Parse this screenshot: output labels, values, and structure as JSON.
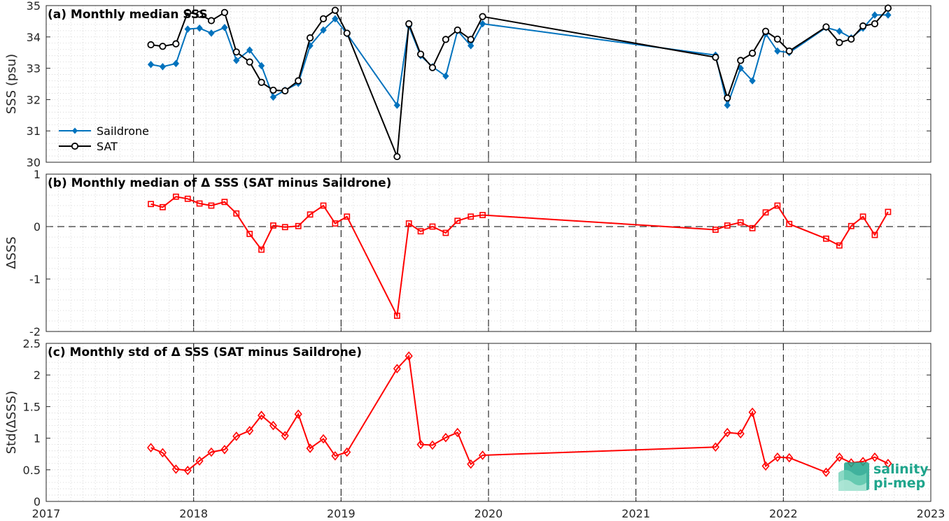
{
  "chart_data": [
    {
      "type": "line",
      "title": "(a) Monthly median SSS",
      "ylabel": "SSS (psu)",
      "xlim": [
        2017,
        2023
      ],
      "ylim": [
        30,
        35
      ],
      "yticks": [
        "30",
        "31",
        "32",
        "33",
        "34",
        "35"
      ],
      "legend": {
        "placement": "bottom-left",
        "entries": [
          "Saildrone",
          "SAT"
        ]
      },
      "series": [
        {
          "name": "Saildrone",
          "color": "#0072bd",
          "marker": "diamond-filled",
          "x": [
            2017.71,
            2017.79,
            2017.88,
            2017.96,
            2018.04,
            2018.12,
            2018.21,
            2018.29,
            2018.38,
            2018.46,
            2018.54,
            2018.62,
            2018.71,
            2018.79,
            2018.88,
            2018.96,
            2019.04,
            2019.38,
            2019.46,
            2019.54,
            2019.62,
            2019.71,
            2019.79,
            2019.88,
            2019.96,
            2021.54,
            2021.62,
            2021.71,
            2021.79,
            2021.88,
            2021.96,
            2022.04,
            2022.29,
            2022.38,
            2022.46,
            2022.54,
            2022.62,
            2022.71
          ],
          "y": [
            33.12,
            33.05,
            33.15,
            34.25,
            34.28,
            34.12,
            34.3,
            33.25,
            33.58,
            33.08,
            32.08,
            32.3,
            32.52,
            33.72,
            34.22,
            34.58,
            34.1,
            31.82,
            34.35,
            33.4,
            33.05,
            32.75,
            34.2,
            33.72,
            34.42,
            33.42,
            31.82,
            33.0,
            32.6,
            34.1,
            33.55,
            33.5,
            34.3,
            34.18,
            33.97,
            34.28,
            34.7,
            34.7
          ]
        },
        {
          "name": "SAT",
          "color": "#000000",
          "marker": "circle-open",
          "x": [
            2017.71,
            2017.79,
            2017.88,
            2017.96,
            2018.04,
            2018.12,
            2018.21,
            2018.29,
            2018.38,
            2018.46,
            2018.54,
            2018.62,
            2018.71,
            2018.79,
            2018.88,
            2018.96,
            2019.04,
            2019.38,
            2019.46,
            2019.54,
            2019.62,
            2019.71,
            2019.79,
            2019.88,
            2019.96,
            2021.54,
            2021.62,
            2021.71,
            2021.79,
            2021.88,
            2021.96,
            2022.04,
            2022.29,
            2022.38,
            2022.46,
            2022.54,
            2022.62,
            2022.71
          ],
          "y": [
            33.75,
            33.7,
            33.78,
            34.78,
            34.72,
            34.52,
            34.78,
            33.52,
            33.2,
            32.55,
            32.3,
            32.28,
            32.6,
            33.97,
            34.58,
            34.85,
            34.12,
            30.18,
            34.42,
            33.45,
            33.02,
            33.92,
            34.22,
            33.92,
            34.65,
            33.35,
            32.05,
            33.25,
            33.48,
            34.18,
            33.93,
            33.55,
            34.32,
            33.82,
            33.93,
            34.35,
            34.42,
            34.92
          ]
        }
      ]
    },
    {
      "type": "line",
      "title": "(b) Monthly median of Δ SSS (SAT minus Saildrone)",
      "ylabel": "ΔSSS",
      "xlim": [
        2017,
        2023
      ],
      "ylim": [
        -2,
        1
      ],
      "yticks": [
        "-2",
        "-1",
        "0",
        "1"
      ],
      "reference_line": 0,
      "series": [
        {
          "color": "#ff0000",
          "marker": "square-open",
          "x": [
            2017.71,
            2017.79,
            2017.88,
            2017.96,
            2018.04,
            2018.12,
            2018.21,
            2018.29,
            2018.38,
            2018.46,
            2018.54,
            2018.62,
            2018.71,
            2018.79,
            2018.88,
            2018.96,
            2019.04,
            2019.38,
            2019.46,
            2019.54,
            2019.62,
            2019.71,
            2019.79,
            2019.88,
            2019.96,
            2021.54,
            2021.62,
            2021.71,
            2021.79,
            2021.88,
            2021.96,
            2022.04,
            2022.29,
            2022.38,
            2022.46,
            2022.54,
            2022.62,
            2022.71
          ],
          "y": [
            0.43,
            0.37,
            0.57,
            0.53,
            0.44,
            0.4,
            0.47,
            0.25,
            -0.14,
            -0.44,
            0.02,
            -0.01,
            0.01,
            0.23,
            0.4,
            0.06,
            0.19,
            -1.7,
            0.06,
            -0.09,
            0.0,
            -0.12,
            0.11,
            0.19,
            0.22,
            -0.06,
            0.02,
            0.08,
            -0.03,
            0.27,
            0.4,
            0.05,
            -0.23,
            -0.36,
            0.01,
            0.19,
            -0.16,
            0.28
          ]
        }
      ]
    },
    {
      "type": "line",
      "title": "(c) Monthly std of Δ SSS (SAT minus Saildrone)",
      "ylabel": "Std(ΔSSS)",
      "xlabel": "",
      "xlim": [
        2017,
        2023
      ],
      "ylim": [
        0,
        2.5
      ],
      "yticks": [
        "0",
        "0.5",
        "1",
        "1.5",
        "2",
        "2.5"
      ],
      "xticks": [
        "2017",
        "2018",
        "2019",
        "2020",
        "2021",
        "2022",
        "2023"
      ],
      "series": [
        {
          "color": "#ff0000",
          "marker": "diamond-open",
          "x": [
            2017.71,
            2017.79,
            2017.88,
            2017.96,
            2018.04,
            2018.12,
            2018.21,
            2018.29,
            2018.38,
            2018.46,
            2018.54,
            2018.62,
            2018.71,
            2018.79,
            2018.88,
            2018.96,
            2019.04,
            2019.38,
            2019.46,
            2019.54,
            2019.62,
            2019.71,
            2019.79,
            2019.88,
            2019.96,
            2021.54,
            2021.62,
            2021.71,
            2021.79,
            2021.88,
            2021.96,
            2022.04,
            2022.29,
            2022.38,
            2022.46,
            2022.54,
            2022.62,
            2022.71
          ],
          "y": [
            0.85,
            0.77,
            0.51,
            0.49,
            0.64,
            0.78,
            0.82,
            1.03,
            1.12,
            1.36,
            1.2,
            1.04,
            1.38,
            0.84,
            0.99,
            0.72,
            0.78,
            2.1,
            2.3,
            0.9,
            0.89,
            1.01,
            1.09,
            0.59,
            0.73,
            0.86,
            1.09,
            1.07,
            1.41,
            0.56,
            0.7,
            0.69,
            0.46,
            0.7,
            0.61,
            0.63,
            0.7,
            0.6
          ]
        }
      ]
    }
  ],
  "logo": {
    "line1": "salinity",
    "line2": "pi-mep"
  }
}
